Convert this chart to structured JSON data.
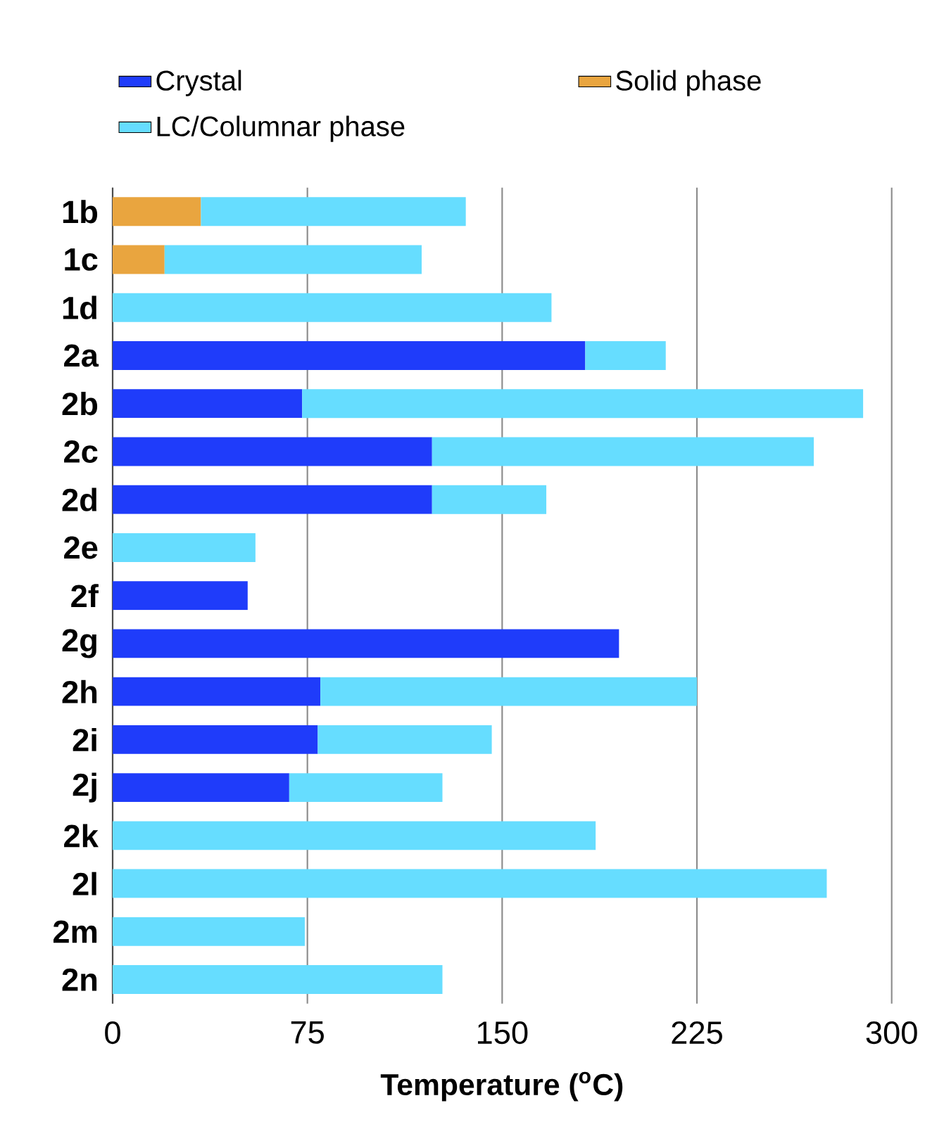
{
  "chart_data": {
    "type": "bar",
    "orientation": "horizontal",
    "stacked": true,
    "xlabel": "Temperature ($^{o}$C)",
    "categories": [
      "1b",
      "1c",
      "1d",
      "2a",
      "2b",
      "2c",
      "2d",
      "2e",
      "2f",
      "2g",
      "2h",
      "2i",
      "2j",
      "2k",
      "2l",
      "2m",
      "2n"
    ],
    "series": [
      {
        "name": "Crystal",
        "color": "#1f3cfa",
        "values": [
          null,
          null,
          null,
          182,
          73,
          123,
          123,
          null,
          52,
          195,
          80,
          79,
          68,
          null,
          null,
          null,
          null
        ]
      },
      {
        "name": "Solid phase",
        "color": "#e9a53f",
        "values": [
          34,
          20,
          null,
          null,
          null,
          null,
          null,
          null,
          null,
          null,
          null,
          null,
          null,
          null,
          null,
          null,
          null
        ]
      },
      {
        "name": "LC/Columnar phase",
        "color": "#66ddff",
        "values": [
          102,
          99,
          169,
          31,
          216,
          147,
          44,
          55,
          null,
          null,
          145,
          67,
          59,
          186,
          275,
          74,
          127
        ]
      }
    ],
    "xlim": [
      0,
      300
    ],
    "xticks": [
      0,
      75,
      150,
      225,
      300
    ],
    "grid": "x",
    "legend": "top"
  }
}
